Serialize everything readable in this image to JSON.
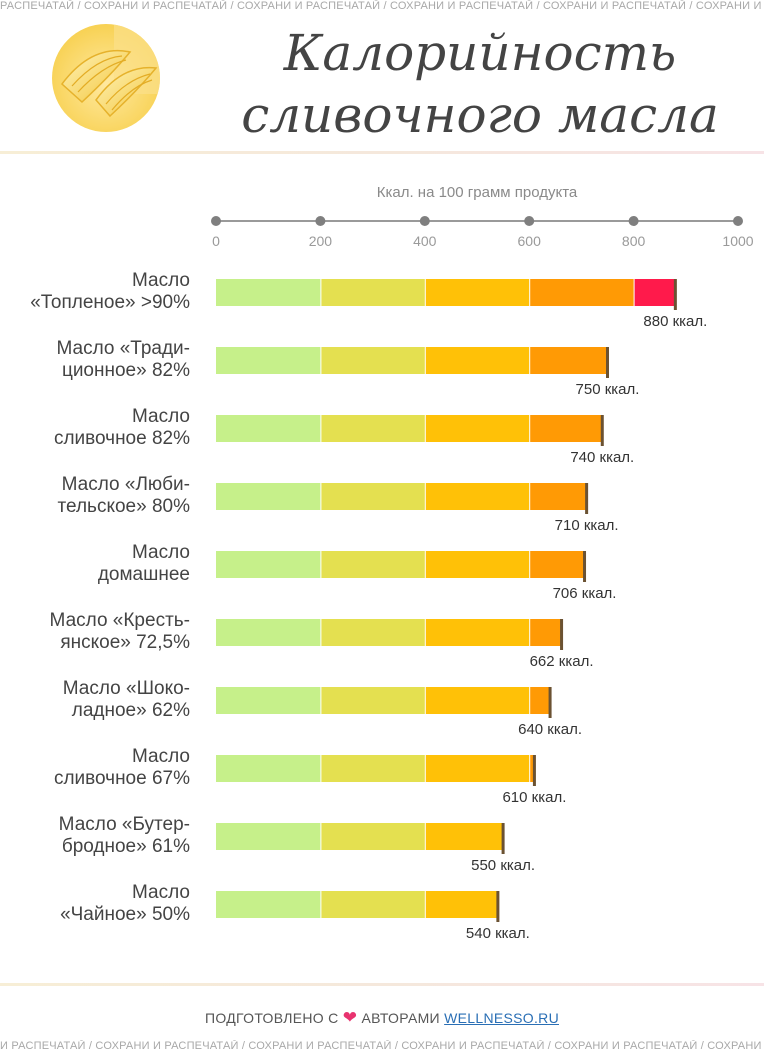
{
  "watermark": "РАСПЕЧАТАЙ / СОХРАНИ И РАСПЕЧАТАЙ / СОХРАНИ И РАСПЕЧАТАЙ / СОХРАНИ И РАСПЕЧАТАЙ / СОХРАНИ И РАСПЕЧАТАЙ / СОХРАНИ И РАСПЕЧАТАЙ / СОХРАНИ И РАСПЕЧАТАЙ",
  "watermark_bottom": "И РАСПЕЧАТАЙ / СОХРАНИ И РАСПЕЧАТАЙ / СОХРАНИ И РАСПЕЧАТАЙ / СОХРАНИ И РАСПЕЧАТАЙ / СОХРАНИ И РАСПЕЧАТАЙ / СОХРАНИ И РАСПЕЧАТАЙ / СОХРАНИ И РАСПЕЧАТАЙ",
  "title_line1": "Калорийность",
  "title_line2": "сливочного масла",
  "footer": {
    "prefix": "ПОДГОТОВЛЕНО С",
    "heart": "❤",
    "middle": "АВТОРАМИ",
    "link": "WELLNESSO.RU"
  },
  "chart_data": {
    "type": "bar",
    "orientation": "horizontal",
    "title": "Калорийность сливочного масла",
    "xlabel": "Ккал. на 100 грамм продукта",
    "xlim": [
      0,
      1000
    ],
    "xticks": [
      0,
      200,
      400,
      600,
      800,
      1000
    ],
    "color_bands": [
      {
        "from": 0,
        "to": 200,
        "color": "#c6f08a"
      },
      {
        "from": 200,
        "to": 400,
        "color": "#e4e050"
      },
      {
        "from": 400,
        "to": 600,
        "color": "#ffc107"
      },
      {
        "from": 600,
        "to": 800,
        "color": "#ff9a05"
      },
      {
        "from": 800,
        "to": 1000,
        "color": "#ff1a4b"
      }
    ],
    "categories": [
      [
        "Масло",
        "«Топленое» >90%"
      ],
      [
        "Масло «Тради-",
        "ционное» 82%"
      ],
      [
        "Масло",
        "сливочное 82%"
      ],
      [
        "Масло «Люби-",
        "тельское» 80%"
      ],
      [
        "Масло",
        "домашнее"
      ],
      [
        "Масло «Кресть-",
        "янское» 72,5%"
      ],
      [
        "Масло «Шоко-",
        "ладное» 62%"
      ],
      [
        "Масло",
        "сливочное 67%"
      ],
      [
        "Масло «Бутер-",
        "бродное» 61%"
      ],
      [
        "Масло",
        "«Чайное» 50%"
      ]
    ],
    "values": [
      880,
      750,
      740,
      710,
      706,
      662,
      640,
      610,
      550,
      540
    ],
    "value_labels": [
      "880 ккал.",
      "750 ккал.",
      "740 ккал.",
      "710 ккал.",
      "706 ккал.",
      "662 ккал.",
      "640 ккал.",
      "610 ккал.",
      "550 ккал.",
      "540 ккал."
    ],
    "grid": false,
    "legend": "none"
  }
}
